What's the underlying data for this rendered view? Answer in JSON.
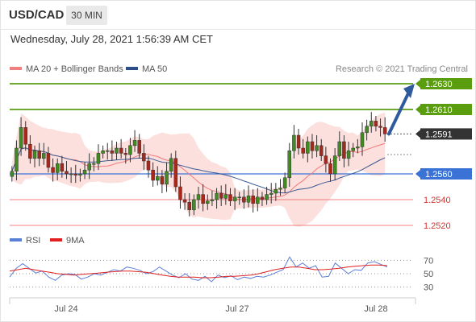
{
  "header": {
    "symbol": "USD/CAD",
    "timeframe": "30 MIN",
    "datetime": "Wednesday, July 28, 2021 1:56:39 AM CET"
  },
  "legend": {
    "ma20_label": "MA 20 + Bollinger Bands",
    "ma50_label": "MA 50",
    "ma20_color": "#f08080",
    "ma50_color": "#2c4f8a",
    "credit": "Research © 2021 Trading Central"
  },
  "rsi_legend": {
    "rsi_label": "RSI",
    "ma_label": "9MA",
    "rsi_color": "#5b7fd6",
    "ma_color": "#e02020"
  },
  "chart_data": [
    {
      "type": "candlestick",
      "title": "USD/CAD",
      "x_ticks": [
        "Jul 24",
        "Jul 27",
        "Jul 28"
      ],
      "ylim": [
        1.2515,
        1.2645
      ],
      "levels": [
        {
          "value": 1.263,
          "label": "1.2630",
          "kind": "resistance",
          "color": "#5a9e0f"
        },
        {
          "value": 1.261,
          "label": "1.2610",
          "kind": "resistance",
          "color": "#5a9e0f"
        },
        {
          "value": 1.2591,
          "label": "1.2591",
          "kind": "last-price",
          "color": "#333333"
        },
        {
          "value": 1.256,
          "label": "1.2560",
          "kind": "pivot",
          "color": "#3a72d6"
        },
        {
          "value": 1.254,
          "label": "1.2540",
          "kind": "support",
          "color": "#f08080"
        },
        {
          "value": 1.252,
          "label": "1.2520",
          "kind": "support",
          "color": "#f08080"
        }
      ],
      "target_arrow": {
        "from": 1.2591,
        "to": 1.263,
        "color": "#2f5b9c"
      },
      "closes": [
        1.2562,
        1.258,
        1.2596,
        1.2583,
        1.2572,
        1.2578,
        1.2572,
        1.2576,
        1.2565,
        1.2561,
        1.2568,
        1.2562,
        1.256,
        1.256,
        1.2559,
        1.256,
        1.2563,
        1.2568,
        1.2568,
        1.2576,
        1.2578,
        1.2578,
        1.2576,
        1.258,
        1.2576,
        1.2575,
        1.2582,
        1.2586,
        1.2576,
        1.257,
        1.2563,
        1.2555,
        1.2558,
        1.2552,
        1.2562,
        1.2572,
        1.255,
        1.254,
        1.2538,
        1.2532,
        1.254,
        1.2544,
        1.2537,
        1.2539,
        1.254,
        1.2545,
        1.2541,
        1.2544,
        1.2539,
        1.2542,
        1.2542,
        1.2538,
        1.2543,
        1.2537,
        1.2542,
        1.254,
        1.2544,
        1.2545,
        1.2548,
        1.2549,
        1.2557,
        1.2578,
        1.259,
        1.258,
        1.2576,
        1.2585,
        1.2578,
        1.2582,
        1.2574,
        1.2568,
        1.256,
        1.2574,
        1.2585,
        1.2572,
        1.2578,
        1.258,
        1.2581,
        1.2592,
        1.2597,
        1.2601,
        1.2597,
        1.2596,
        1.2591
      ],
      "rsi": {
        "levels": [
          70,
          50,
          30
        ],
        "rsi_values": [
          45,
          58,
          65,
          58,
          51,
          54,
          45,
          40,
          48,
          50,
          49,
          42,
          45,
          50,
          48,
          52,
          56,
          54,
          60,
          58,
          55,
          50,
          53,
          60,
          54,
          48,
          44,
          50,
          42,
          40,
          46,
          38,
          48,
          44,
          47,
          41,
          45,
          43,
          46,
          45,
          48,
          52,
          56,
          75,
          60,
          66,
          58,
          62,
          45,
          46,
          66,
          58,
          50,
          56,
          55,
          66,
          68,
          64,
          60
        ],
        "ma_values": [
          54,
          56,
          58,
          56,
          54,
          52,
          50,
          49,
          48,
          49,
          50,
          51,
          52,
          53,
          54,
          54,
          53,
          52,
          50,
          48,
          46,
          45,
          45,
          45,
          44,
          44,
          45,
          46,
          46,
          47,
          48,
          50,
          53,
          56,
          58,
          60,
          60,
          58,
          56,
          56,
          57,
          58,
          60,
          61,
          62,
          63,
          63,
          62
        ]
      }
    }
  ]
}
